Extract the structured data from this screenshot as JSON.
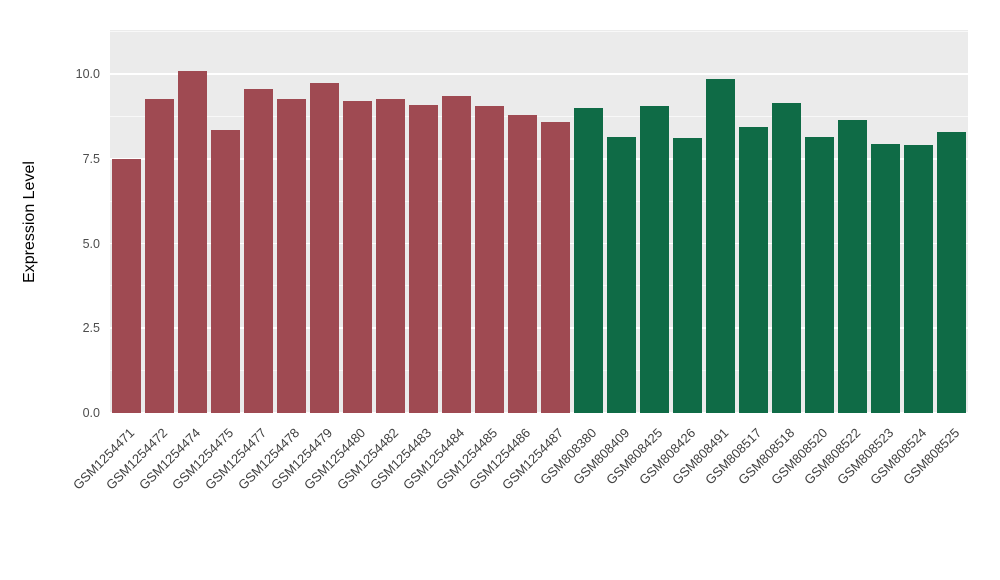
{
  "chart_data": {
    "type": "bar",
    "title": "",
    "xlabel": "",
    "ylabel": "Expression Level",
    "ylim": [
      0,
      11.3
    ],
    "grid": true,
    "legend": false,
    "panel_bg": "#EBEBEB",
    "grid_color": "#FFFFFF",
    "groups": {
      "group1": "#9F4A52",
      "group2": "#0F6B46"
    },
    "yticks": [
      {
        "value": 0.0,
        "label": "0.0"
      },
      {
        "value": 2.5,
        "label": "2.5"
      },
      {
        "value": 5.0,
        "label": "5.0"
      },
      {
        "value": 7.5,
        "label": "7.5"
      },
      {
        "value": 10.0,
        "label": "10.0"
      }
    ],
    "bars": [
      {
        "label": "GSM1254471",
        "value": 7.5,
        "group": "group1"
      },
      {
        "label": "GSM1254472",
        "value": 9.25,
        "group": "group1"
      },
      {
        "label": "GSM1254474",
        "value": 10.1,
        "group": "group1"
      },
      {
        "label": "GSM1254475",
        "value": 8.35,
        "group": "group1"
      },
      {
        "label": "GSM1254477",
        "value": 9.55,
        "group": "group1"
      },
      {
        "label": "GSM1254478",
        "value": 9.25,
        "group": "group1"
      },
      {
        "label": "GSM1254479",
        "value": 9.75,
        "group": "group1"
      },
      {
        "label": "GSM1254480",
        "value": 9.2,
        "group": "group1"
      },
      {
        "label": "GSM1254482",
        "value": 9.25,
        "group": "group1"
      },
      {
        "label": "GSM1254483",
        "value": 9.1,
        "group": "group1"
      },
      {
        "label": "GSM1254484",
        "value": 9.35,
        "group": "group1"
      },
      {
        "label": "GSM1254485",
        "value": 9.05,
        "group": "group1"
      },
      {
        "label": "GSM1254486",
        "value": 8.8,
        "group": "group1"
      },
      {
        "label": "GSM1254487",
        "value": 8.6,
        "group": "group1"
      },
      {
        "label": "GSM808380",
        "value": 9.0,
        "group": "group2"
      },
      {
        "label": "GSM808409",
        "value": 8.15,
        "group": "group2"
      },
      {
        "label": "GSM808425",
        "value": 9.05,
        "group": "group2"
      },
      {
        "label": "GSM808426",
        "value": 8.1,
        "group": "group2"
      },
      {
        "label": "GSM808491",
        "value": 9.85,
        "group": "group2"
      },
      {
        "label": "GSM808517",
        "value": 8.45,
        "group": "group2"
      },
      {
        "label": "GSM808518",
        "value": 9.15,
        "group": "group2"
      },
      {
        "label": "GSM808520",
        "value": 8.15,
        "group": "group2"
      },
      {
        "label": "GSM808522",
        "value": 8.65,
        "group": "group2"
      },
      {
        "label": "GSM808523",
        "value": 7.95,
        "group": "group2"
      },
      {
        "label": "GSM808524",
        "value": 7.9,
        "group": "group2"
      },
      {
        "label": "GSM808525",
        "value": 8.3,
        "group": "group2"
      }
    ]
  }
}
